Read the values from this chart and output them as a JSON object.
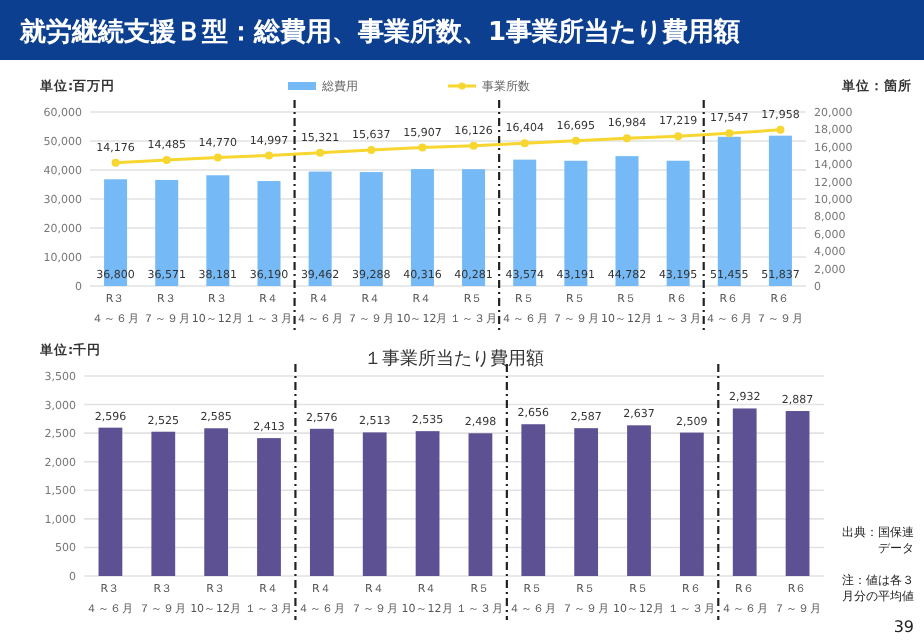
{
  "chart_data": [
    {
      "type": "bar",
      "title": "就労継続支援Ｂ型：総費用、事業所数、1事業所当たり費用額",
      "ylabel": "単位:百万円",
      "y2label": "単位：箇所",
      "categories": [
        "R３４～６月",
        "R３７～９月",
        "R３10～12月",
        "R４１～３月",
        "R４４～６月",
        "R４７～９月",
        "R４10～12月",
        "R５１～３月",
        "R５４～６月",
        "R５７～９月",
        "R５10～12月",
        "R６１～３月",
        "R６４～６月",
        "R６７～９月"
      ],
      "series": [
        {
          "name": "総費用",
          "color": "#75baf6",
          "values": [
            36800,
            36571,
            38181,
            36190,
            39462,
            39288,
            40316,
            40281,
            43574,
            43191,
            44782,
            43195,
            51455,
            51837
          ],
          "value_labels": [
            "36,800",
            "36,571",
            "38,181",
            "36,190",
            "39,462",
            "39,288",
            "40,316",
            "40,281",
            "43,574",
            "43,191",
            "44,782",
            "43,195",
            "51,455",
            "51,837"
          ]
        },
        {
          "name": "事業所数",
          "type": "line",
          "axis": "y2",
          "color": "#f7d630",
          "values": [
            14176,
            14485,
            14770,
            14997,
            15321,
            15637,
            15907,
            16126,
            16404,
            16695,
            16984,
            17219,
            17547,
            17958
          ],
          "value_labels": [
            "14,176",
            "14,485",
            "14,770",
            "14,997",
            "15,321",
            "15,637",
            "15,907",
            "16,126",
            "16,404",
            "16,695",
            "16,984",
            "17,219",
            "17,547",
            "17,958"
          ]
        }
      ],
      "ylim": [
        0,
        60000
      ],
      "yticks": [
        {
          "value": 0,
          "label": "0"
        },
        {
          "value": 10000,
          "label": "10,000"
        },
        {
          "value": 20000,
          "label": "20,000"
        },
        {
          "value": 30000,
          "label": "30,000"
        },
        {
          "value": 40000,
          "label": "40,000"
        },
        {
          "value": 50000,
          "label": "50,000"
        },
        {
          "value": 60000,
          "label": "60,000"
        }
      ],
      "y2lim": [
        0,
        20000
      ],
      "y2ticks": [
        {
          "value": 0,
          "label": "0"
        },
        {
          "value": 2000,
          "label": "2,000"
        },
        {
          "value": 4000,
          "label": "4,000"
        },
        {
          "value": 6000,
          "label": "6,000"
        },
        {
          "value": 8000,
          "label": "8,000"
        },
        {
          "value": 10000,
          "label": "10,000"
        },
        {
          "value": 12000,
          "label": "12,000"
        },
        {
          "value": 14000,
          "label": "14,000"
        },
        {
          "value": 16000,
          "label": "16,000"
        },
        {
          "value": 18000,
          "label": "18,000"
        },
        {
          "value": 20000,
          "label": "20,000"
        }
      ],
      "grid": "y",
      "legend": "top",
      "marker": "circle"
    },
    {
      "type": "bar",
      "title": "１事業所当たり費用額",
      "ylabel": "単位:千円",
      "categories": [
        "R３４～６月",
        "R３７～９月",
        "R３10～12月",
        "R４１～３月",
        "R４４～６月",
        "R４７～９月",
        "R４10～12月",
        "R５１～３月",
        "R５４～６月",
        "R５７～９月",
        "R５10～12月",
        "R６１～３月",
        "R６４～６月",
        "R６７～９月"
      ],
      "series": [
        {
          "color": "#5d5194",
          "values": [
            2596,
            2525,
            2585,
            2413,
            2576,
            2513,
            2535,
            2498,
            2656,
            2587,
            2637,
            2509,
            2932,
            2887
          ],
          "value_labels": [
            "2,596",
            "2,525",
            "2,585",
            "2,413",
            "2,576",
            "2,513",
            "2,535",
            "2,498",
            "2,656",
            "2,587",
            "2,637",
            "2,509",
            "2,932",
            "2,887"
          ]
        }
      ],
      "ylim": [
        0,
        3500
      ],
      "yticks": [
        {
          "value": 0,
          "label": "0"
        },
        500,
        {
          "value": 1000,
          "label": "1,000"
        },
        {
          "value": 1500,
          "label": "1,500"
        },
        {
          "value": 2000,
          "label": "2,000"
        },
        {
          "value": 2500,
          "label": "2,500"
        },
        {
          "value": 3000,
          "label": "3,000"
        },
        {
          "value": 3500,
          "label": "3,500"
        }
      ],
      "grid": "y",
      "annotations": [
        "出典：国保連データ",
        "注：値は各３月分の平均値",
        "39"
      ]
    }
  ]
}
